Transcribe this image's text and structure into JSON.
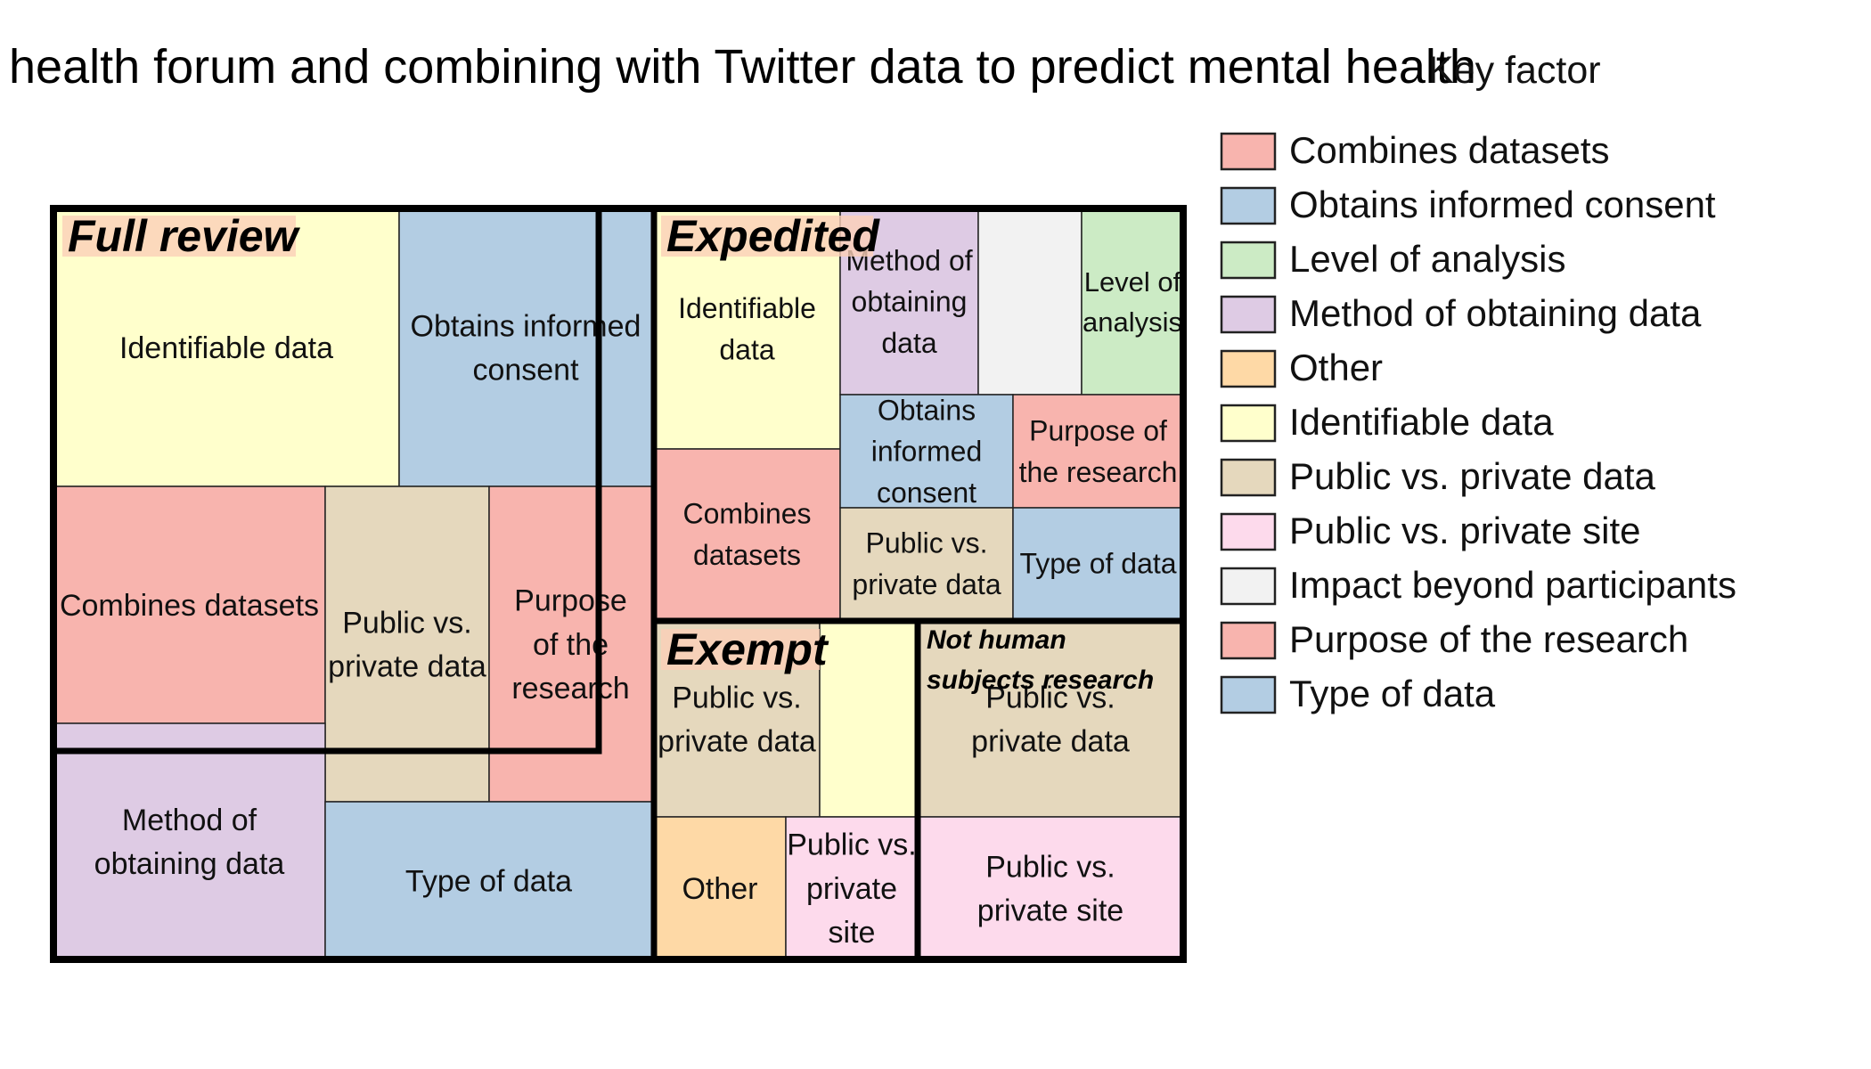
{
  "chart_data": {
    "type": "treemap",
    "title": "health forum and combining with Twitter data to predict mental health",
    "legend": {
      "title": "Key factor",
      "placement": "right",
      "items": [
        {
          "label": "Combines datasets",
          "color": "#f8b4ae"
        },
        {
          "label": "Obtains informed consent",
          "color": "#b3cde3"
        },
        {
          "label": "Level of analysis",
          "color": "#ccebc5"
        },
        {
          "label": "Method of obtaining data",
          "color": "#decbe4"
        },
        {
          "label": "Other",
          "color": "#fed9a6"
        },
        {
          "label": "Identifiable data",
          "color": "#ffffcc"
        },
        {
          "label": "Public vs. private data",
          "color": "#e5d8bd"
        },
        {
          "label": "Public vs. private site",
          "color": "#fddaec"
        },
        {
          "label": "Impact beyond participants",
          "color": "#f2f2f2"
        },
        {
          "label": "Purpose of the research",
          "color": "#f8b4ae"
        },
        {
          "label": "Type of data",
          "color": "#b3cde3"
        }
      ]
    },
    "groups": [
      {
        "name": "Full review",
        "tiles": [
          {
            "factor": "Identifiable data",
            "label": "Identifiable data"
          },
          {
            "factor": "Obtains informed consent",
            "label": "Obtains informed consent"
          },
          {
            "factor": "Combines datasets",
            "label": "Combines datasets"
          },
          {
            "factor": "Public vs. private data",
            "label": "Public vs. private data"
          },
          {
            "factor": "Purpose of the research",
            "label": "Purpose of the research"
          },
          {
            "factor": "Method of obtaining data",
            "label": "Method of obtaining data"
          },
          {
            "factor": "Type of data",
            "label": "Type of data"
          }
        ]
      },
      {
        "name": "Expedited",
        "tiles": [
          {
            "factor": "Identifiable data",
            "label": "Identifiable data"
          },
          {
            "factor": "Method of obtaining data",
            "label": "Method of obtaining data"
          },
          {
            "factor": "Impact beyond participants",
            "label": ""
          },
          {
            "factor": "Level of analysis",
            "label": "Level of analysis"
          },
          {
            "factor": "Combines datasets",
            "label": "Combines datasets"
          },
          {
            "factor": "Obtains informed consent",
            "label": "Obtains informed consent"
          },
          {
            "factor": "Purpose of the research",
            "label": "Purpose of the research"
          },
          {
            "factor": "Public vs. private data",
            "label": "Public vs. private data"
          },
          {
            "factor": "Type of data",
            "label": "Type of data"
          }
        ]
      },
      {
        "name": "Exempt",
        "tiles": [
          {
            "factor": "Public vs. private data",
            "label": "Public vs. private data"
          },
          {
            "factor": "Identifiable data",
            "label": ""
          },
          {
            "factor": "Other",
            "label": "Other"
          },
          {
            "factor": "Public vs. private site",
            "label": "Public vs. private site"
          }
        ]
      },
      {
        "name": "Not human subjects research",
        "tiles": [
          {
            "factor": "Public vs. private data",
            "label": "Public vs. private data"
          },
          {
            "factor": "Public vs. private site",
            "label": "Public vs. private site"
          }
        ]
      }
    ]
  }
}
